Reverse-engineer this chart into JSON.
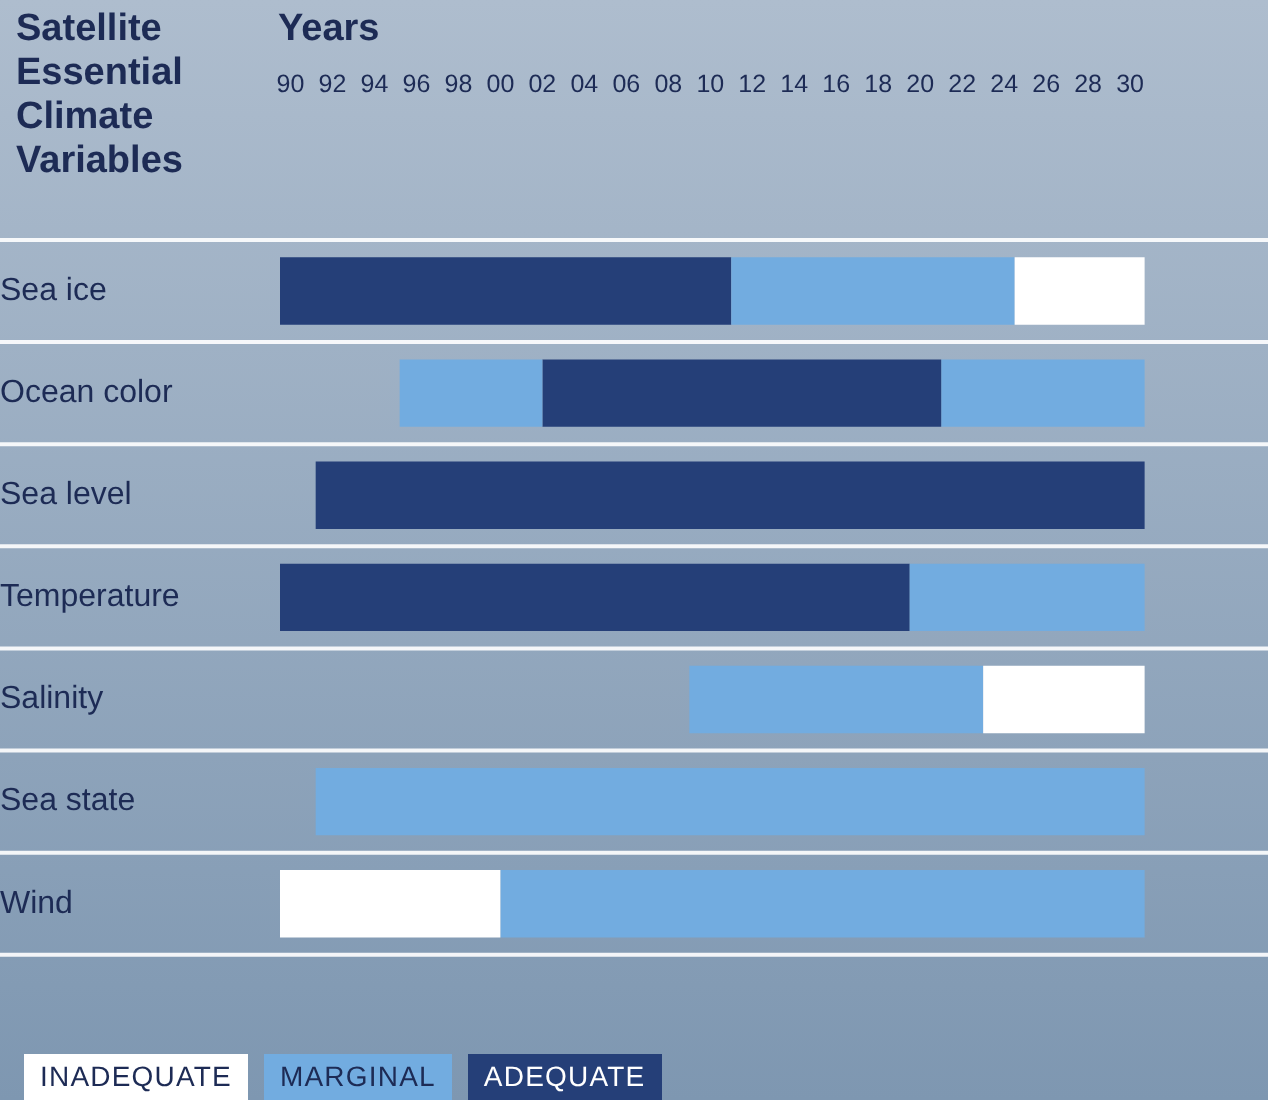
{
  "chart_data": {
    "type": "bar",
    "orientation": "horizontal",
    "xlabel": "Years",
    "ylabel": "Satellite Essential Climate Variables",
    "categories": [
      "Sea ice",
      "Ocean color",
      "Sea level",
      "Temperature",
      "Salinity",
      "Sea state",
      "Wind"
    ],
    "series": [
      {
        "name": "INADEQUATE",
        "color": "#ffffff",
        "base": [
          2024.5,
          null,
          null,
          null,
          2023,
          null,
          1989.5
        ],
        "values": [
          6.2,
          null,
          null,
          null,
          7.7,
          null,
          10.5
        ]
      },
      {
        "name": "MARGINAL",
        "color": "#72ace0",
        "base": [
          2011,
          1995.2,
          null,
          2019.5,
          2009,
          1991.2,
          2000
        ],
        "values": [
          13.5,
          6.8,
          null,
          11.2,
          14,
          39.5,
          30.7
        ]
      },
      {
        "name": "ADEQUATE",
        "color": "#253f78",
        "base": [
          1989.5,
          2002,
          1991.2,
          1989.5,
          null,
          null,
          null
        ],
        "values": [
          21.5,
          19,
          39.5,
          30,
          null,
          null,
          null
        ]
      },
      {
        "color": "#72ace0",
        "base": [
          null,
          2021,
          null,
          null,
          null,
          null,
          null
        ],
        "values": [
          null,
          9.7,
          null,
          null,
          null,
          null,
          null
        ]
      }
    ],
    "xlim": [
      1989.5,
      2030.7
    ],
    "xticks": [
      {
        "value": 1990,
        "label": "90"
      },
      {
        "value": 1992,
        "label": "92"
      },
      {
        "value": 1994,
        "label": "94"
      },
      {
        "value": 1996,
        "label": "96"
      },
      {
        "value": 1998,
        "label": "98"
      },
      {
        "value": 2000,
        "label": "00"
      },
      {
        "value": 2002,
        "label": "02"
      },
      {
        "value": 2004,
        "label": "04"
      },
      {
        "value": 2006,
        "label": "06"
      },
      {
        "value": 2008,
        "label": "08"
      },
      {
        "value": 2010,
        "label": "10"
      },
      {
        "value": 2012,
        "label": "12"
      },
      {
        "value": 2014,
        "label": "14"
      },
      {
        "value": 2016,
        "label": "16"
      },
      {
        "value": 2018,
        "label": "18"
      },
      {
        "value": 2020,
        "label": "20"
      },
      {
        "value": 2022,
        "label": "22"
      },
      {
        "value": 2024,
        "label": "24"
      },
      {
        "value": 2026,
        "label": "26"
      },
      {
        "value": 2028,
        "label": "28"
      },
      {
        "value": 2030,
        "label": "30"
      }
    ],
    "grid": "y",
    "legend": "bottom left"
  }
}
